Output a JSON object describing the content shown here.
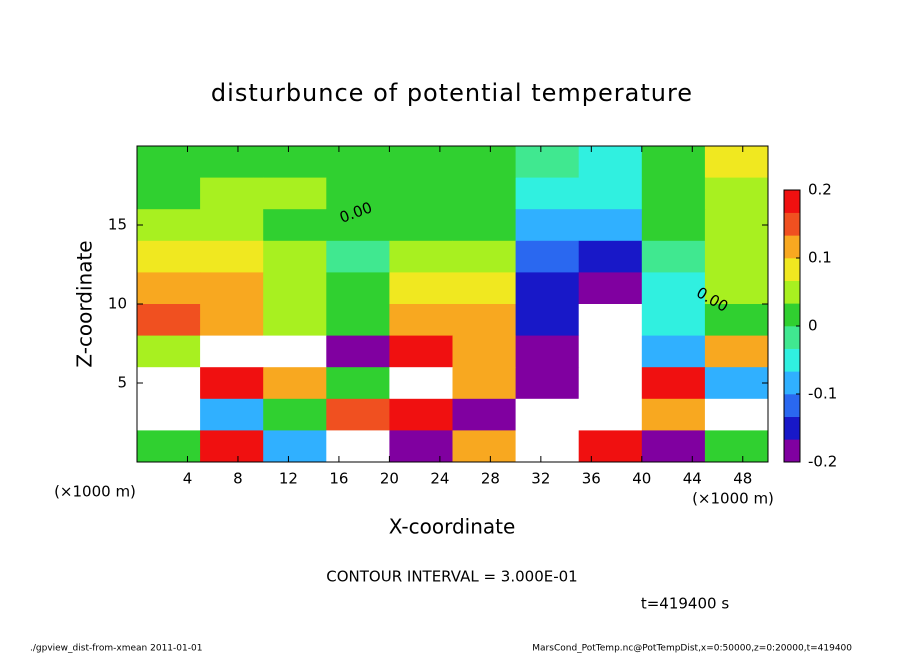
{
  "chart_data": {
    "type": "heatmap",
    "title": "disturbunce of potential temperature",
    "xlabel": "X-coordinate",
    "ylabel": "Z-coordinate",
    "x_unit": "(×1000 m)",
    "y_unit": "(×1000 m)",
    "x": [
      2.5,
      7.5,
      12.5,
      17.5,
      22.5,
      27.5,
      32.5,
      37.5,
      42.5,
      47.5
    ],
    "y": [
      19,
      17,
      15,
      13,
      11,
      9,
      7,
      5,
      3,
      1
    ],
    "z": [
      [
        0.0,
        0.02,
        0.03,
        0.03,
        0.02,
        0.03,
        -0.02,
        -0.04,
        0.03,
        0.08
      ],
      [
        0.02,
        0.04,
        0.04,
        0.03,
        0.03,
        0.02,
        -0.06,
        -0.06,
        0.02,
        0.06
      ],
      [
        0.05,
        0.04,
        0.03,
        0.02,
        0.03,
        0.02,
        -0.1,
        -0.1,
        0.0,
        0.06
      ],
      [
        0.07,
        0.07,
        0.04,
        -0.01,
        0.05,
        0.04,
        -0.12,
        -0.14,
        -0.02,
        0.05
      ],
      [
        0.1,
        0.1,
        0.05,
        0.0,
        0.09,
        0.07,
        -0.14,
        -0.18,
        -0.04,
        0.04
      ],
      [
        0.16,
        0.11,
        0.06,
        0.02,
        0.13,
        0.12,
        -0.16,
        -0.25,
        -0.05,
        0.02
      ],
      [
        0.05,
        -0.3,
        0.3,
        -0.2,
        0.2,
        0.1,
        -0.2,
        0.3,
        -0.1,
        0.1
      ],
      [
        -0.3,
        0.2,
        0.1,
        0.0,
        -0.3,
        0.1,
        -0.2,
        0.3,
        0.2,
        -0.1
      ],
      [
        0.3,
        -0.1,
        0.0,
        0.15,
        0.2,
        -0.2,
        0.3,
        -0.3,
        0.1,
        0.3
      ],
      [
        0.0,
        0.2,
        -0.1,
        0.3,
        -0.2,
        0.1,
        0.3,
        0.2,
        -0.2,
        0.0
      ]
    ],
    "xlim": [
      0,
      50
    ],
    "xticks": [
      4,
      8,
      12,
      16,
      20,
      24,
      28,
      32,
      36,
      40,
      44,
      48
    ],
    "ylim": [
      0,
      20
    ],
    "yticks": [
      5,
      10,
      15
    ],
    "zlim": [
      -0.2,
      0.2
    ],
    "zticks": [
      -0.2,
      -0.1,
      0,
      0.1,
      0.2
    ],
    "colors": [
      "#8000a0",
      "#1818c8",
      "#2a68f0",
      "#30b0ff",
      "#30f0e0",
      "#40e890",
      "#30d030",
      "#a8f020",
      "#f0e820",
      "#f8a820",
      "#f05020",
      "#f01010"
    ],
    "out_of_range_color": "#ffffff",
    "contour_labels": [
      "0.00",
      "0.00"
    ],
    "contour_interval": "CONTOUR INTERVAL = 3.000E-01",
    "time": "t=419400 s",
    "footer_left": "./gpview_dist-from-xmean  2011-01-01",
    "footer_right": "MarsCond_PotTemp.nc@PotTempDist,x=0:50000,z=0:20000,t=419400"
  }
}
